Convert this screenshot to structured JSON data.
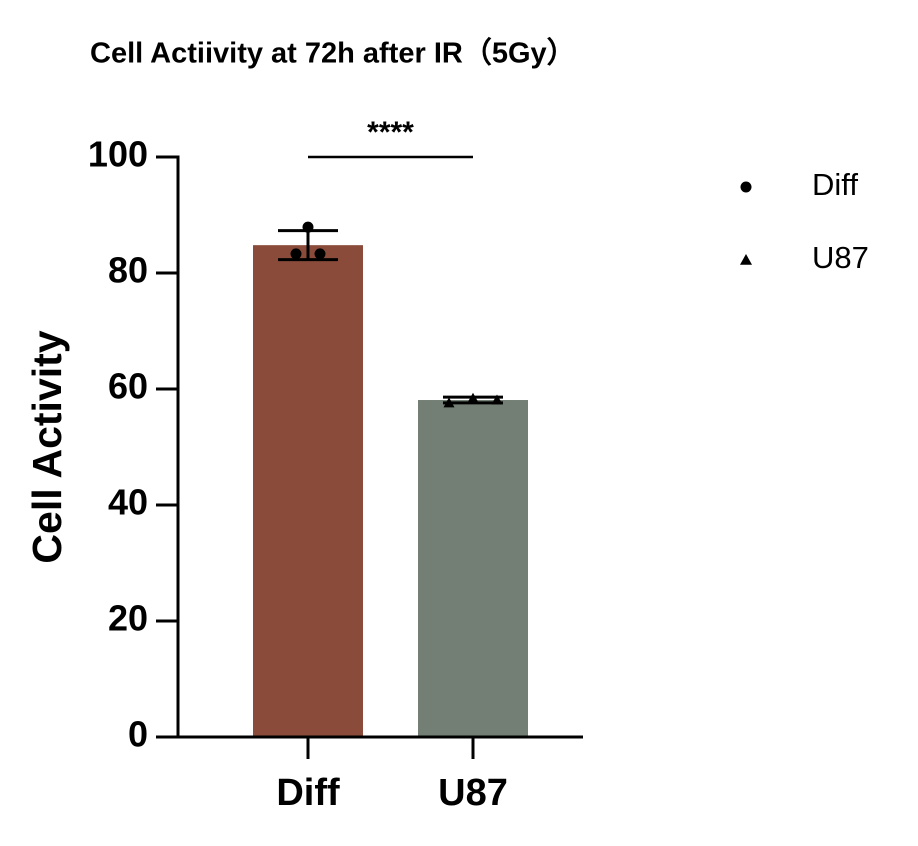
{
  "chart_data": {
    "type": "bar",
    "title": "Cell Actiivity at 72h after IR（5Gy）",
    "y_label": "Cell  Activity",
    "categories": [
      "Diff",
      "U87"
    ],
    "values": [
      84.8,
      58.1
    ],
    "errors": [
      2.5,
      0.5
    ],
    "points": [
      [
        87.9,
        83.3,
        83.3
      ],
      [
        57.6,
        58.4,
        58.1
      ]
    ],
    "colors": [
      "#8a4b3a",
      "#737f75"
    ],
    "markers": [
      "circle",
      "triangle"
    ],
    "ylim": [
      0,
      100
    ],
    "yticks": [
      0,
      20,
      40,
      60,
      80,
      100
    ],
    "annotation": "****",
    "legend": "right"
  }
}
